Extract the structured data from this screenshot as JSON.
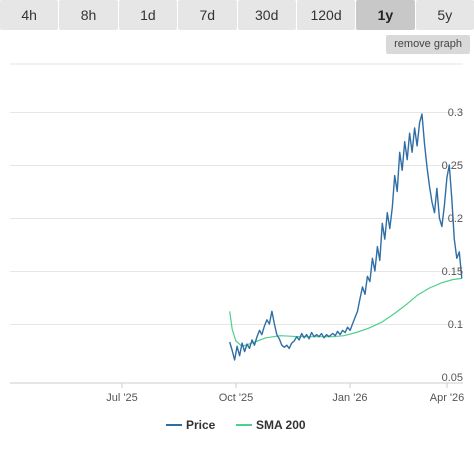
{
  "tabs": [
    {
      "label": "4h",
      "active": false
    },
    {
      "label": "8h",
      "active": false
    },
    {
      "label": "1d",
      "active": false
    },
    {
      "label": "7d",
      "active": false
    },
    {
      "label": "30d",
      "active": false
    },
    {
      "label": "120d",
      "active": false
    },
    {
      "label": "1y",
      "active": true
    },
    {
      "label": "5y",
      "active": false
    }
  ],
  "remove_graph_label": "remove graph",
  "chart_data": {
    "type": "line",
    "x_tick_labels": [
      "Jul '25",
      "Oct '25",
      "Jan '26",
      "Apr '26"
    ],
    "y_tick_labels": [
      "0.05",
      "0.1",
      "0.15",
      "0.2",
      "0.25",
      "0.3"
    ],
    "ylim": [
      0.05,
      0.3
    ],
    "grid": true,
    "legend_position": "bottom",
    "series": [
      {
        "name": "Price",
        "color": "#2f6ea5",
        "points": [
          [
            "2025-10-10",
            0.083
          ],
          [
            "2025-10-12",
            0.075
          ],
          [
            "2025-10-14",
            0.066
          ],
          [
            "2025-10-16",
            0.079
          ],
          [
            "2025-10-18",
            0.07
          ],
          [
            "2025-10-20",
            0.082
          ],
          [
            "2025-10-22",
            0.074
          ],
          [
            "2025-10-24",
            0.081
          ],
          [
            "2025-10-26",
            0.077
          ],
          [
            "2025-10-28",
            0.085
          ],
          [
            "2025-10-30",
            0.08
          ],
          [
            "2025-11-01",
            0.088
          ],
          [
            "2025-11-03",
            0.094
          ],
          [
            "2025-11-05",
            0.09
          ],
          [
            "2025-11-07",
            0.098
          ],
          [
            "2025-11-09",
            0.104
          ],
          [
            "2025-11-11",
            0.1
          ],
          [
            "2025-11-13",
            0.112
          ],
          [
            "2025-11-15",
            0.1
          ],
          [
            "2025-11-17",
            0.09
          ],
          [
            "2025-11-19",
            0.086
          ],
          [
            "2025-11-21",
            0.08
          ],
          [
            "2025-11-23",
            0.078
          ],
          [
            "2025-11-25",
            0.08
          ],
          [
            "2025-11-27",
            0.077
          ],
          [
            "2025-11-29",
            0.082
          ],
          [
            "2025-12-01",
            0.084
          ],
          [
            "2025-12-03",
            0.088
          ],
          [
            "2025-12-05",
            0.085
          ],
          [
            "2025-12-07",
            0.091
          ],
          [
            "2025-12-09",
            0.087
          ],
          [
            "2025-12-11",
            0.09
          ],
          [
            "2025-12-13",
            0.086
          ],
          [
            "2025-12-15",
            0.092
          ],
          [
            "2025-12-17",
            0.088
          ],
          [
            "2025-12-19",
            0.09
          ],
          [
            "2025-12-21",
            0.088
          ],
          [
            "2025-12-23",
            0.091
          ],
          [
            "2025-12-25",
            0.087
          ],
          [
            "2025-12-27",
            0.09
          ],
          [
            "2025-12-29",
            0.088
          ],
          [
            "2026-01-01",
            0.091
          ],
          [
            "2026-01-03",
            0.089
          ],
          [
            "2026-01-05",
            0.093
          ],
          [
            "2026-01-07",
            0.09
          ],
          [
            "2026-01-09",
            0.094
          ],
          [
            "2026-01-11",
            0.092
          ],
          [
            "2026-01-13",
            0.097
          ],
          [
            "2026-01-15",
            0.094
          ],
          [
            "2026-01-17",
            0.1
          ],
          [
            "2026-01-19",
            0.106
          ],
          [
            "2026-01-21",
            0.112
          ],
          [
            "2026-01-23",
            0.124
          ],
          [
            "2026-01-25",
            0.135
          ],
          [
            "2026-01-27",
            0.128
          ],
          [
            "2026-01-29",
            0.145
          ],
          [
            "2026-01-31",
            0.14
          ],
          [
            "2026-02-02",
            0.162
          ],
          [
            "2026-02-04",
            0.15
          ],
          [
            "2026-02-06",
            0.173
          ],
          [
            "2026-02-08",
            0.16
          ],
          [
            "2026-02-10",
            0.195
          ],
          [
            "2026-02-12",
            0.18
          ],
          [
            "2026-02-14",
            0.205
          ],
          [
            "2026-02-16",
            0.19
          ],
          [
            "2026-02-18",
            0.21
          ],
          [
            "2026-02-20",
            0.24
          ],
          [
            "2026-02-22",
            0.225
          ],
          [
            "2026-02-24",
            0.262
          ],
          [
            "2026-02-26",
            0.245
          ],
          [
            "2026-02-28",
            0.272
          ],
          [
            "2026-03-02",
            0.255
          ],
          [
            "2026-03-04",
            0.28
          ],
          [
            "2026-03-06",
            0.262
          ],
          [
            "2026-03-08",
            0.285
          ],
          [
            "2026-03-10",
            0.268
          ],
          [
            "2026-03-12",
            0.29
          ],
          [
            "2026-03-14",
            0.298
          ],
          [
            "2026-03-16",
            0.27
          ],
          [
            "2026-03-18",
            0.248
          ],
          [
            "2026-03-20",
            0.23
          ],
          [
            "2026-03-22",
            0.215
          ],
          [
            "2026-03-24",
            0.205
          ],
          [
            "2026-03-26",
            0.228
          ],
          [
            "2026-03-28",
            0.2
          ],
          [
            "2026-03-30",
            0.192
          ],
          [
            "2026-04-01",
            0.212
          ],
          [
            "2026-04-03",
            0.238
          ],
          [
            "2026-04-05",
            0.25
          ],
          [
            "2026-04-07",
            0.218
          ],
          [
            "2026-04-09",
            0.18
          ],
          [
            "2026-04-11",
            0.162
          ],
          [
            "2026-04-13",
            0.168
          ],
          [
            "2026-04-15",
            0.143
          ]
        ]
      },
      {
        "name": "SMA 200",
        "color": "#4cd08c",
        "points": [
          [
            "2025-10-10",
            0.112
          ],
          [
            "2025-10-12",
            0.095
          ],
          [
            "2025-10-15",
            0.084
          ],
          [
            "2025-10-20",
            0.079
          ],
          [
            "2025-10-28",
            0.082
          ],
          [
            "2025-11-08",
            0.087
          ],
          [
            "2025-11-20",
            0.089
          ],
          [
            "2025-12-05",
            0.088
          ],
          [
            "2025-12-20",
            0.088
          ],
          [
            "2026-01-01",
            0.088
          ],
          [
            "2026-01-10",
            0.089
          ],
          [
            "2026-01-20",
            0.092
          ],
          [
            "2026-01-30",
            0.096
          ],
          [
            "2026-02-10",
            0.102
          ],
          [
            "2026-02-20",
            0.11
          ],
          [
            "2026-03-01",
            0.118
          ],
          [
            "2026-03-10",
            0.127
          ],
          [
            "2026-03-20",
            0.134
          ],
          [
            "2026-03-30",
            0.139
          ],
          [
            "2026-04-08",
            0.142
          ],
          [
            "2026-04-15",
            0.143
          ]
        ]
      }
    ]
  }
}
